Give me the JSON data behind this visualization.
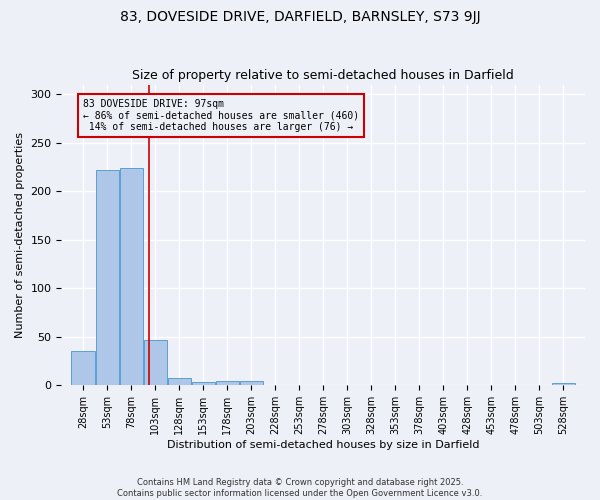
{
  "title1": "83, DOVESIDE DRIVE, DARFIELD, BARNSLEY, S73 9JJ",
  "title2": "Size of property relative to semi-detached houses in Darfield",
  "xlabel": "Distribution of semi-detached houses by size in Darfield",
  "ylabel": "Number of semi-detached properties",
  "property_size": 97,
  "property_label": "83 DOVESIDE DRIVE: 97sqm",
  "pct_smaller": 86,
  "pct_smaller_n": 460,
  "pct_larger": 14,
  "pct_larger_n": 76,
  "bin_labels": [
    "28sqm",
    "53sqm",
    "78sqm",
    "103sqm",
    "128sqm",
    "153sqm",
    "178sqm",
    "203sqm",
    "228sqm",
    "253sqm",
    "278sqm",
    "303sqm",
    "328sqm",
    "353sqm",
    "378sqm",
    "403sqm",
    "428sqm",
    "453sqm",
    "478sqm",
    "503sqm",
    "528sqm"
  ],
  "bin_centers": [
    28,
    53,
    78,
    103,
    128,
    153,
    178,
    203,
    228,
    253,
    278,
    303,
    328,
    353,
    378,
    403,
    428,
    453,
    478,
    503,
    528
  ],
  "bin_values": [
    35,
    222,
    224,
    47,
    8,
    3,
    4,
    4,
    0,
    0,
    0,
    0,
    0,
    0,
    0,
    0,
    0,
    0,
    0,
    0,
    2
  ],
  "bar_color": "#aec6e8",
  "bar_edge_color": "#5a9fd4",
  "vline_color": "#cc0000",
  "bg_color": "#eef0f8",
  "grid_color": "#ffffff",
  "ylim": [
    0,
    310
  ],
  "yticks": [
    0,
    50,
    100,
    150,
    200,
    250,
    300
  ],
  "footer": "Contains HM Land Registry data © Crown copyright and database right 2025.\nContains public sector information licensed under the Open Government Licence v3.0.",
  "title1_fontsize": 10,
  "title2_fontsize": 9,
  "bin_width": 25
}
